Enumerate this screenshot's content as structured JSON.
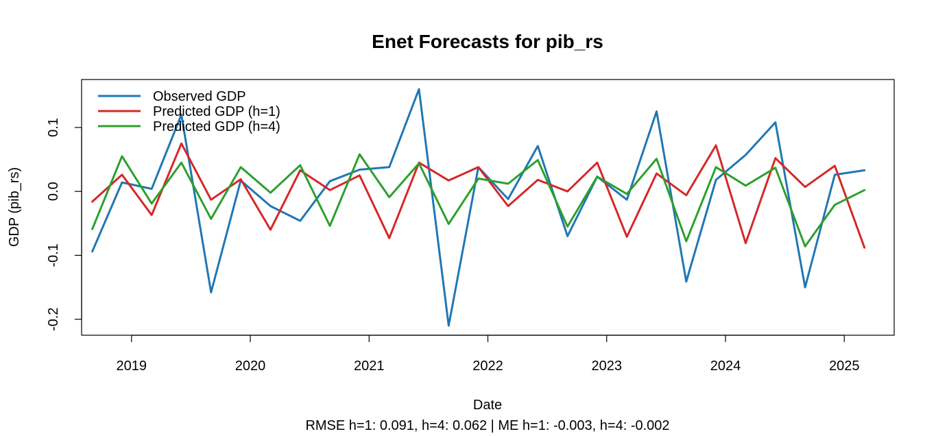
{
  "chart_data": {
    "type": "line",
    "title": "Enet Forecasts for pib_rs",
    "xlabel": "Date",
    "ylabel": "GDP (pib_rs)",
    "subtitle": "RMSE h=1: 0.091, h=4: 0.062  |  ME h=1: -0.003, h=4: -0.002",
    "xlim": [
      2018.58,
      2025.42
    ],
    "ylim": [
      -0.225,
      0.175
    ],
    "x_ticks": [
      2019,
      2020,
      2021,
      2022,
      2023,
      2024,
      2025
    ],
    "x_tick_labels": [
      "2019",
      "2020",
      "2021",
      "2022",
      "2023",
      "2024",
      "2025"
    ],
    "y_ticks": [
      -0.2,
      -0.1,
      0.0,
      0.1
    ],
    "y_tick_labels": [
      "-0.2",
      "-0.1",
      "0.0",
      "0.1"
    ],
    "x": [
      2018.67,
      2018.92,
      2019.17,
      2019.42,
      2019.67,
      2019.92,
      2020.17,
      2020.42,
      2020.67,
      2020.92,
      2021.17,
      2021.42,
      2021.67,
      2021.92,
      2022.17,
      2022.42,
      2022.67,
      2022.92,
      2023.17,
      2023.42,
      2023.67,
      2023.92,
      2024.17,
      2024.42,
      2024.67,
      2024.92,
      2025.17
    ],
    "series": [
      {
        "name": "Observed GDP",
        "color": "#1f77b4",
        "values": [
          -0.094,
          0.014,
          0.004,
          0.12,
          -0.158,
          0.017,
          -0.023,
          -0.046,
          0.016,
          0.034,
          0.038,
          0.16,
          -0.21,
          0.038,
          -0.012,
          0.071,
          -0.07,
          0.023,
          -0.013,
          0.125,
          -0.141,
          0.018,
          0.057,
          0.108,
          -0.15,
          0.026,
          0.033
        ]
      },
      {
        "name": "Predicted GDP (h=1)",
        "color": "#d62728",
        "values": [
          -0.016,
          0.026,
          -0.037,
          0.075,
          -0.013,
          0.019,
          -0.06,
          0.033,
          0.002,
          0.025,
          -0.073,
          0.045,
          0.017,
          0.038,
          -0.023,
          0.018,
          0.0,
          0.045,
          -0.071,
          0.028,
          -0.006,
          0.072,
          -0.081,
          0.052,
          0.007,
          0.04,
          -0.088
        ]
      },
      {
        "name": "Predicted GDP (h=4)",
        "color": "#2ca02c",
        "values": [
          -0.059,
          0.055,
          -0.019,
          0.045,
          -0.043,
          0.038,
          -0.002,
          0.041,
          -0.054,
          0.058,
          -0.009,
          0.044,
          -0.051,
          0.02,
          0.012,
          0.049,
          -0.055,
          0.023,
          -0.004,
          0.051,
          -0.078,
          0.038,
          0.009,
          0.037,
          -0.086,
          -0.021,
          0.002
        ]
      }
    ],
    "legend_position": "top-left",
    "grid": false
  }
}
